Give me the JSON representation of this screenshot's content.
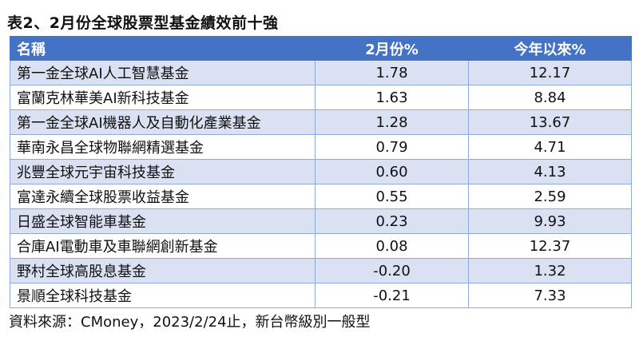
{
  "title": "表2、2月份全球股票型基金績效前十強",
  "table": {
    "headers": [
      "名稱",
      "2月份%",
      "今年以來%"
    ],
    "rows": [
      [
        "第一金全球AI人工智慧基金",
        "1.78",
        "12.17"
      ],
      [
        "富蘭克林華美AI新科技基金",
        "1.63",
        "8.84"
      ],
      [
        "第一金全球AI機器人及自動化產業基金",
        "1.28",
        "13.67"
      ],
      [
        "華南永昌全球物聯網精選基金",
        "0.79",
        "4.71"
      ],
      [
        "兆豐全球元宇宙科技基金",
        "0.60",
        "4.13"
      ],
      [
        "富達永續全球股票收益基金",
        "0.55",
        "2.59"
      ],
      [
        "日盛全球智能車基金",
        "0.23",
        "9.93"
      ],
      [
        "合庫AI電動車及車聯網創新基金",
        "0.08",
        "12.37"
      ],
      [
        "野村全球高股息基金",
        "-0.20",
        "1.32"
      ],
      [
        "景順全球科技基金",
        "-0.21",
        "7.33"
      ]
    ]
  },
  "footer": "資料來源：CMoney，2023/2/24止，新台幣級別一般型",
  "colors": {
    "header_bg": "#4472c4",
    "band_bg": "#d9e1f2",
    "border": "#8eaadb"
  }
}
